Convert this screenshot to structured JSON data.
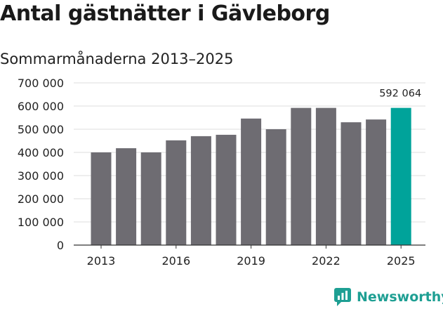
{
  "header": {
    "title": "Antal gästnätter i Gävleborg",
    "subtitle": "Sommarmånaderna 2013–2025"
  },
  "brand": {
    "name": "Newsworthy",
    "icon": "newsworthy-logo-icon",
    "color": "#1e9f93"
  },
  "chart_data": {
    "type": "bar",
    "title": "Antal gästnätter i Gävleborg",
    "subtitle": "Sommarmånaderna 2013–2025",
    "xlabel": "",
    "ylabel": "",
    "categories": [
      "2013",
      "2014",
      "2015",
      "2016",
      "2017",
      "2018",
      "2019",
      "2020",
      "2021",
      "2022",
      "2023",
      "2024",
      "2025"
    ],
    "x_tick_labels": [
      "2013",
      "2016",
      "2019",
      "2022",
      "2025"
    ],
    "values": [
      400000,
      418000,
      400000,
      452000,
      470000,
      476000,
      546000,
      500000,
      592000,
      592000,
      530000,
      542000,
      592064
    ],
    "ylim": [
      0,
      700000
    ],
    "y_ticks": [
      0,
      100000,
      200000,
      300000,
      400000,
      500000,
      600000,
      700000
    ],
    "y_tick_labels": [
      "0",
      "100 000",
      "200 000",
      "300 000",
      "400 000",
      "500 000",
      "600 000",
      "700 000"
    ],
    "grid": true,
    "colors": {
      "bar": "#6e6c72",
      "highlight": "#00a39a",
      "grid": "#dddddd",
      "axis": "#333333"
    },
    "highlight_index": 12,
    "annotation": {
      "index": 12,
      "text": "592 064"
    }
  }
}
